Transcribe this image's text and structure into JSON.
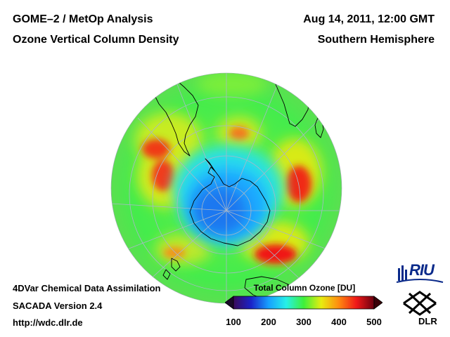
{
  "header": {
    "title_left_1": "GOME–2 / MetOp Analysis",
    "title_left_2": "Ozone Vertical Column Density",
    "date": "Aug 14, 2011, 12:00 GMT",
    "hemisphere": "Southern Hemisphere"
  },
  "footer": {
    "line1": "4DVar Chemical Data Assimilation",
    "line2": "SACADA Version 2.4",
    "line3": "http://wdc.dlr.de"
  },
  "colorbar": {
    "title": "Total Column Ozone [DU]",
    "min": 100,
    "max": 500,
    "ticks": [
      "100",
      "200",
      "300",
      "400",
      "500"
    ],
    "stops": [
      {
        "value": 100,
        "color": "#3a0a5a"
      },
      {
        "value": 150,
        "color": "#1a22c8"
      },
      {
        "value": 200,
        "color": "#17a0ff"
      },
      {
        "value": 250,
        "color": "#26f0e8"
      },
      {
        "value": 300,
        "color": "#3ef03a"
      },
      {
        "value": 350,
        "color": "#e8ec10"
      },
      {
        "value": 400,
        "color": "#ff8a10"
      },
      {
        "value": 450,
        "color": "#f01818"
      },
      {
        "value": 500,
        "color": "#6a0010"
      }
    ]
  },
  "map": {
    "projection": "orthographic, south polar view",
    "background_ozone_du": 320,
    "features": [
      {
        "name": "antarctic-ozone-hole",
        "value_du": 190
      },
      {
        "name": "ozone-maximum-south-indian-ocean",
        "value_du": 440
      },
      {
        "name": "ozone-maximum-south-atlantic",
        "value_du": 420
      },
      {
        "name": "ozone-maximum-south-pacific",
        "value_du": 410
      },
      {
        "name": "ozone-maximum-southern-ocean-australia",
        "value_du": 430
      }
    ]
  },
  "logos": {
    "riu": "RIU",
    "dlr": "DLR"
  },
  "colors": {
    "background": "#ffffff",
    "text": "#000000",
    "riu_blue": "#0a2a8a",
    "graticule": "#a8b8c8",
    "coastline": "#000000"
  }
}
